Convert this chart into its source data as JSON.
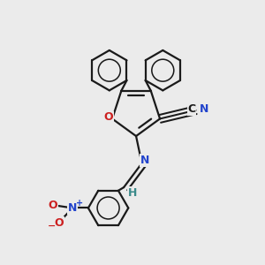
{
  "bg_color": "#ebebeb",
  "bond_color": "#1a1a1a",
  "bond_width": 1.6,
  "N_color": "#2244cc",
  "O_color": "#cc2020",
  "H_color": "#3a8a8a",
  "figsize": [
    3.0,
    3.0
  ],
  "dpi": 100,
  "xlim": [
    -1.6,
    1.6
  ],
  "ylim": [
    -2.1,
    1.6
  ]
}
